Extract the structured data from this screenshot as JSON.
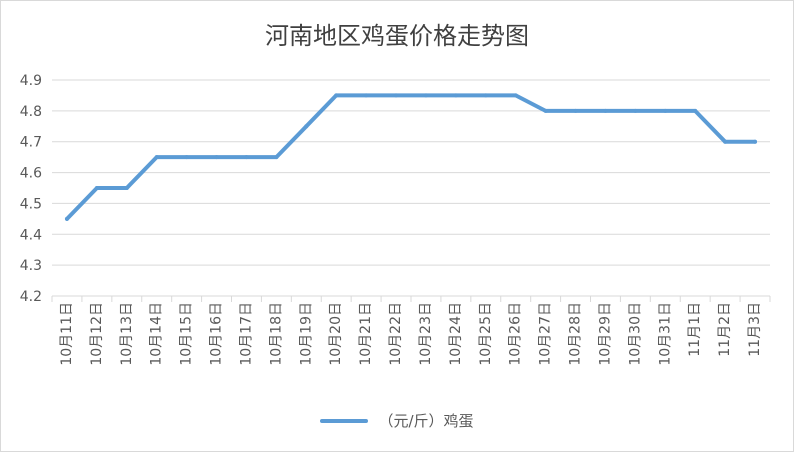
{
  "chart_data": {
    "type": "line",
    "title": "河南地区鸡蛋价格走势图",
    "xlabel": "",
    "ylabel": "",
    "categories": [
      "10月11日",
      "10月12日",
      "10月13日",
      "10月14日",
      "10月15日",
      "10月16日",
      "10月17日",
      "10月18日",
      "10月19日",
      "10月20日",
      "10月21日",
      "10月22日",
      "10月23日",
      "10月24日",
      "10月25日",
      "10月26日",
      "10月27日",
      "10月28日",
      "10月29日",
      "10月30日",
      "10月31日",
      "11月1日",
      "11月2日",
      "11月3日"
    ],
    "series": [
      {
        "name": "（元/斤）鸡蛋",
        "values": [
          4.45,
          4.55,
          4.55,
          4.65,
          4.65,
          4.65,
          4.65,
          4.65,
          4.75,
          4.85,
          4.85,
          4.85,
          4.85,
          4.85,
          4.85,
          4.85,
          4.8,
          4.8,
          4.8,
          4.8,
          4.8,
          4.8,
          4.7,
          4.7
        ]
      }
    ],
    "ylim": [
      4.2,
      4.9
    ],
    "yticks": [
      "4.2",
      "4.3",
      "4.4",
      "4.5",
      "4.6",
      "4.7",
      "4.8",
      "4.9"
    ],
    "grid": true,
    "legend_position": "bottom",
    "colors": {
      "line": "#5b9bd5",
      "grid": "#d9d9d9",
      "text": "#595959"
    }
  }
}
